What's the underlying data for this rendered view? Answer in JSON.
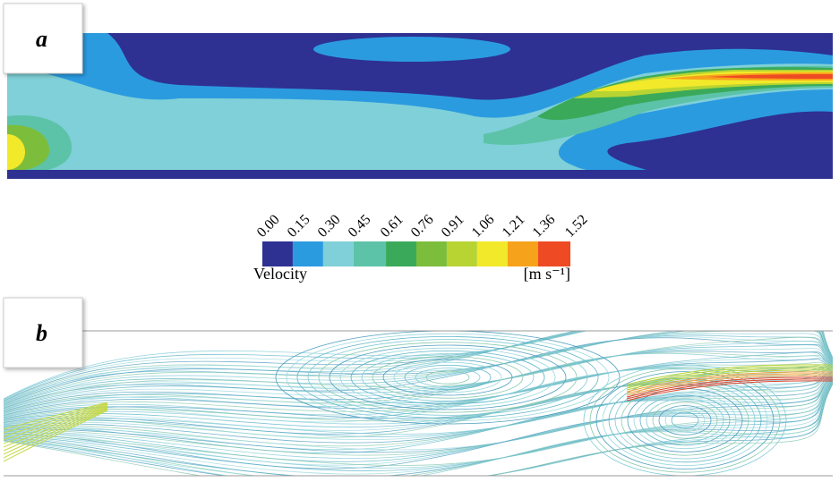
{
  "panels": [
    {
      "label": "a"
    },
    {
      "label": "b"
    }
  ],
  "legend": {
    "title": "Velocity",
    "unit": "[m s⁻¹]",
    "ticks": [
      {
        "value": 0,
        "label": "0.00"
      },
      0.15,
      {
        "value": 0.3,
        "label": "0.30"
      },
      0.45,
      0.61,
      0.76,
      0.91,
      1.06,
      1.21,
      1.36,
      1.52
    ],
    "colors": [
      "#2e3192",
      "#2b9be0",
      "#7fd0d8",
      "#5cc3a8",
      "#3aaa5a",
      "#7cbd3c",
      "#b8d432",
      "#f2e92a",
      "#f7a21b",
      "#ee4a23"
    ]
  }
}
